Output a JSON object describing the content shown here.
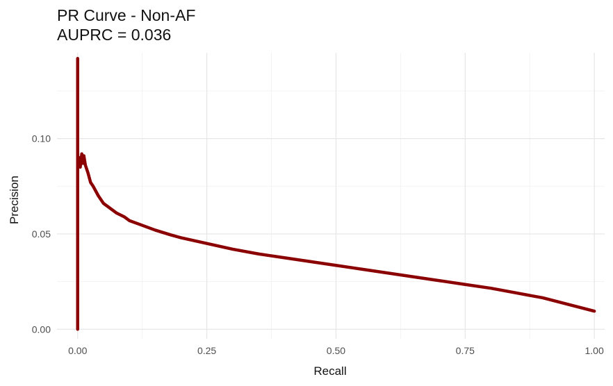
{
  "chart_data": {
    "type": "line",
    "title": "PR Curve - Non-AF",
    "subtitle": "AUPRC = 0.036",
    "xlabel": "Recall",
    "ylabel": "Precision",
    "xlim": [
      -0.04,
      1.02
    ],
    "ylim": [
      -0.005,
      0.145
    ],
    "x_ticks": [
      0.0,
      0.25,
      0.5,
      0.75,
      1.0
    ],
    "x_tick_labels": [
      "0.00",
      "0.25",
      "0.50",
      "0.75",
      "1.00"
    ],
    "y_ticks": [
      0.0,
      0.05,
      0.1
    ],
    "y_tick_labels": [
      "0.00",
      "0.05",
      "0.10"
    ],
    "grid": true,
    "line_color": "#8b0000",
    "series": [
      {
        "x": [
          0.0,
          0.0,
          0.0,
          0.0,
          0.0,
          0.003,
          0.005,
          0.008,
          0.01,
          0.012,
          0.015,
          0.02,
          0.025,
          0.03,
          0.04,
          0.05,
          0.06,
          0.075,
          0.09,
          0.1,
          0.12,
          0.13,
          0.15,
          0.18,
          0.2,
          0.25,
          0.3,
          0.35,
          0.4,
          0.45,
          0.5,
          0.55,
          0.6,
          0.65,
          0.7,
          0.75,
          0.8,
          0.85,
          0.9,
          0.95,
          1.0
        ],
        "y": [
          0.0,
          0.06,
          0.142,
          0.1,
          0.085,
          0.09,
          0.085,
          0.092,
          0.087,
          0.091,
          0.086,
          0.082,
          0.077,
          0.075,
          0.07,
          0.066,
          0.064,
          0.061,
          0.059,
          0.057,
          0.055,
          0.054,
          0.052,
          0.0495,
          0.048,
          0.045,
          0.042,
          0.0395,
          0.0375,
          0.0355,
          0.0335,
          0.0315,
          0.0295,
          0.0275,
          0.0255,
          0.0235,
          0.0215,
          0.019,
          0.0165,
          0.013,
          0.0095
        ]
      }
    ]
  }
}
